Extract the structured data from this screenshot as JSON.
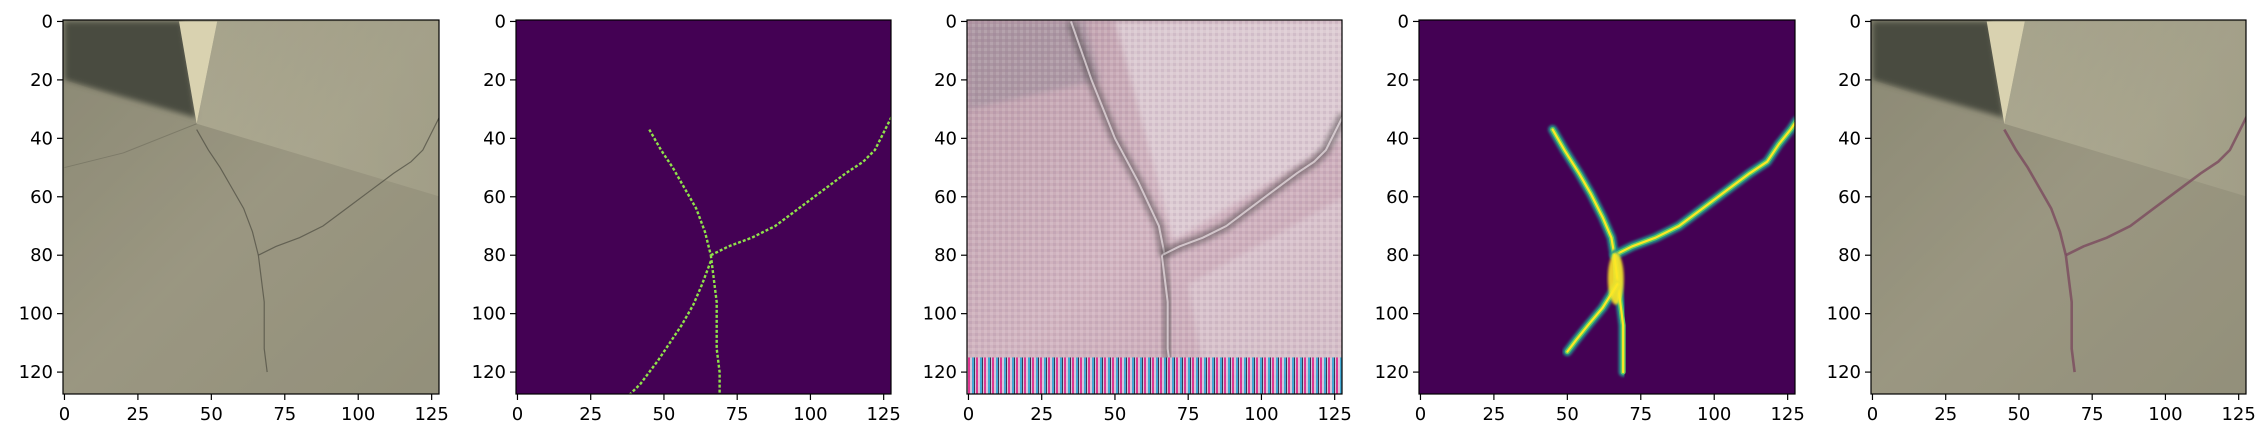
{
  "chart_data": [
    {
      "type": "image",
      "content": "concrete wall photo with wall corner and hairline crack",
      "xticks": [
        "0",
        "25",
        "50",
        "75",
        "100",
        "125"
      ],
      "yticks": [
        "0",
        "20",
        "40",
        "60",
        "80",
        "100",
        "120"
      ],
      "xlim": [
        -0.5,
        127.5
      ],
      "ylim": [
        127.5,
        -0.5
      ],
      "colors": {
        "base": "#9c9983",
        "dark_corner": "#4a4b41",
        "wall_light": "#c2bfa6"
      }
    },
    {
      "type": "image",
      "content": "binary crack mask, viridis colormap",
      "xticks": [
        "0",
        "25",
        "50",
        "75",
        "100",
        "125"
      ],
      "yticks": [
        "0",
        "20",
        "40",
        "60",
        "80",
        "100",
        "120"
      ],
      "xlim": [
        -0.5,
        127.5
      ],
      "ylim": [
        127.5,
        -0.5
      ],
      "colors": {
        "background": "#440154",
        "crack": "#8fe14a"
      }
    },
    {
      "type": "image",
      "content": "generated texture image with pink and grey tones and dark crack lines",
      "xticks": [
        "0",
        "25",
        "50",
        "75",
        "100",
        "125"
      ],
      "yticks": [
        "0",
        "20",
        "40",
        "60",
        "80",
        "100",
        "120"
      ],
      "xlim": [
        -0.5,
        127.5
      ],
      "ylim": [
        127.5,
        -0.5
      ],
      "colors": {
        "base": "#c9a6b3",
        "light": "#e3d6dc",
        "dark": "#4d4648"
      }
    },
    {
      "type": "image",
      "content": "predicted crack probability map, viridis colormap",
      "xticks": [
        "0",
        "25",
        "50",
        "75",
        "100",
        "125"
      ],
      "yticks": [
        "0",
        "20",
        "40",
        "60",
        "80",
        "100",
        "120"
      ],
      "xlim": [
        -0.5,
        127.5
      ],
      "ylim": [
        127.5,
        -0.5
      ],
      "colors": {
        "background": "#440154",
        "edge": "#21918c",
        "mid": "#5ec962",
        "core": "#fde725"
      }
    },
    {
      "type": "image",
      "content": "concrete wall photo with crack overlay",
      "xticks": [
        "0",
        "25",
        "50",
        "75",
        "100",
        "125"
      ],
      "yticks": [
        "0",
        "20",
        "40",
        "60",
        "80",
        "100",
        "120"
      ],
      "xlim": [
        -0.5,
        127.5
      ],
      "ylim": [
        127.5,
        -0.5
      ],
      "colors": {
        "base": "#9c9983",
        "dark_corner": "#4a4b41",
        "overlay": "#7a4a5e"
      }
    }
  ]
}
